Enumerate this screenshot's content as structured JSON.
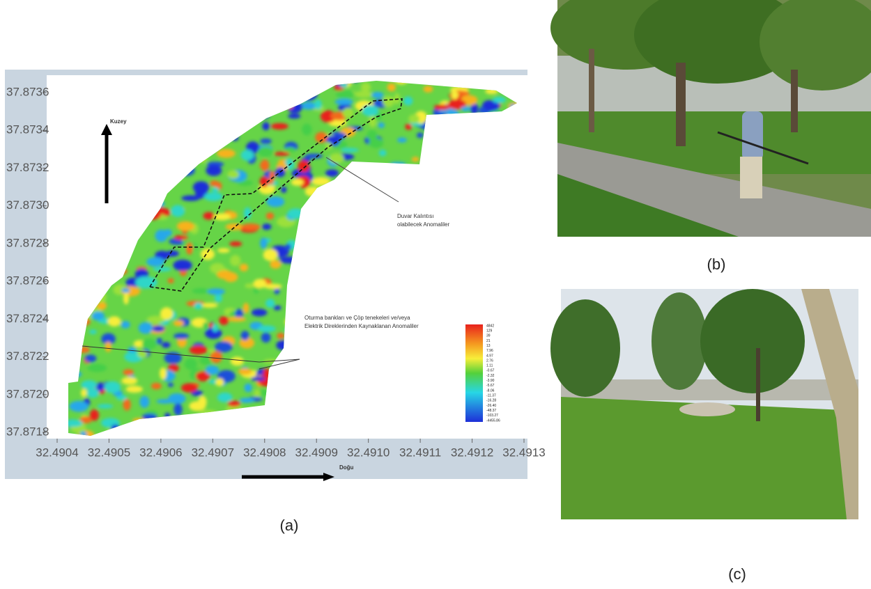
{
  "figure": {
    "panel_a": {
      "label": "(a)",
      "north_label": "Kuzey",
      "east_label": "Doğu",
      "annotation_wall": [
        "Duvar Kalıntısı",
        "olabilecek Anomaliler"
      ],
      "annotation_benches": [
        "Oturma bankları ve Çöp tenekeleri ve/veya",
        "Elektrik Direklerinden Kaynaklanan Anomaliler"
      ],
      "xticks": [
        32.4904,
        32.4905,
        32.4906,
        32.4907,
        32.4908,
        32.4909,
        {
          "value": 32.491,
          "label": "32.4910"
        },
        32.4911,
        32.4912,
        32.4913
      ],
      "yticks": [
        37.8718,
        {
          "value": 37.872,
          "label": "37.8720"
        },
        37.8722,
        37.8724,
        37.8726,
        37.8728,
        {
          "value": 37.873,
          "label": "37.8730"
        },
        37.8732,
        37.8734,
        37.8736
      ],
      "colorbar_labels": [
        "4842",
        "129",
        "39",
        "21",
        "13",
        "7.96",
        "4.97",
        "2.76",
        "1.11",
        "-0.67",
        "-2.32",
        "-3.90",
        "-5.67",
        "-8.06",
        "-11.37",
        "-16.28",
        "-26.40",
        "-48.37",
        "-103.27",
        "-4455.86"
      ]
    },
    "panel_b": {
      "label": "(b)"
    },
    "panel_c": {
      "label": "(c)"
    }
  }
}
